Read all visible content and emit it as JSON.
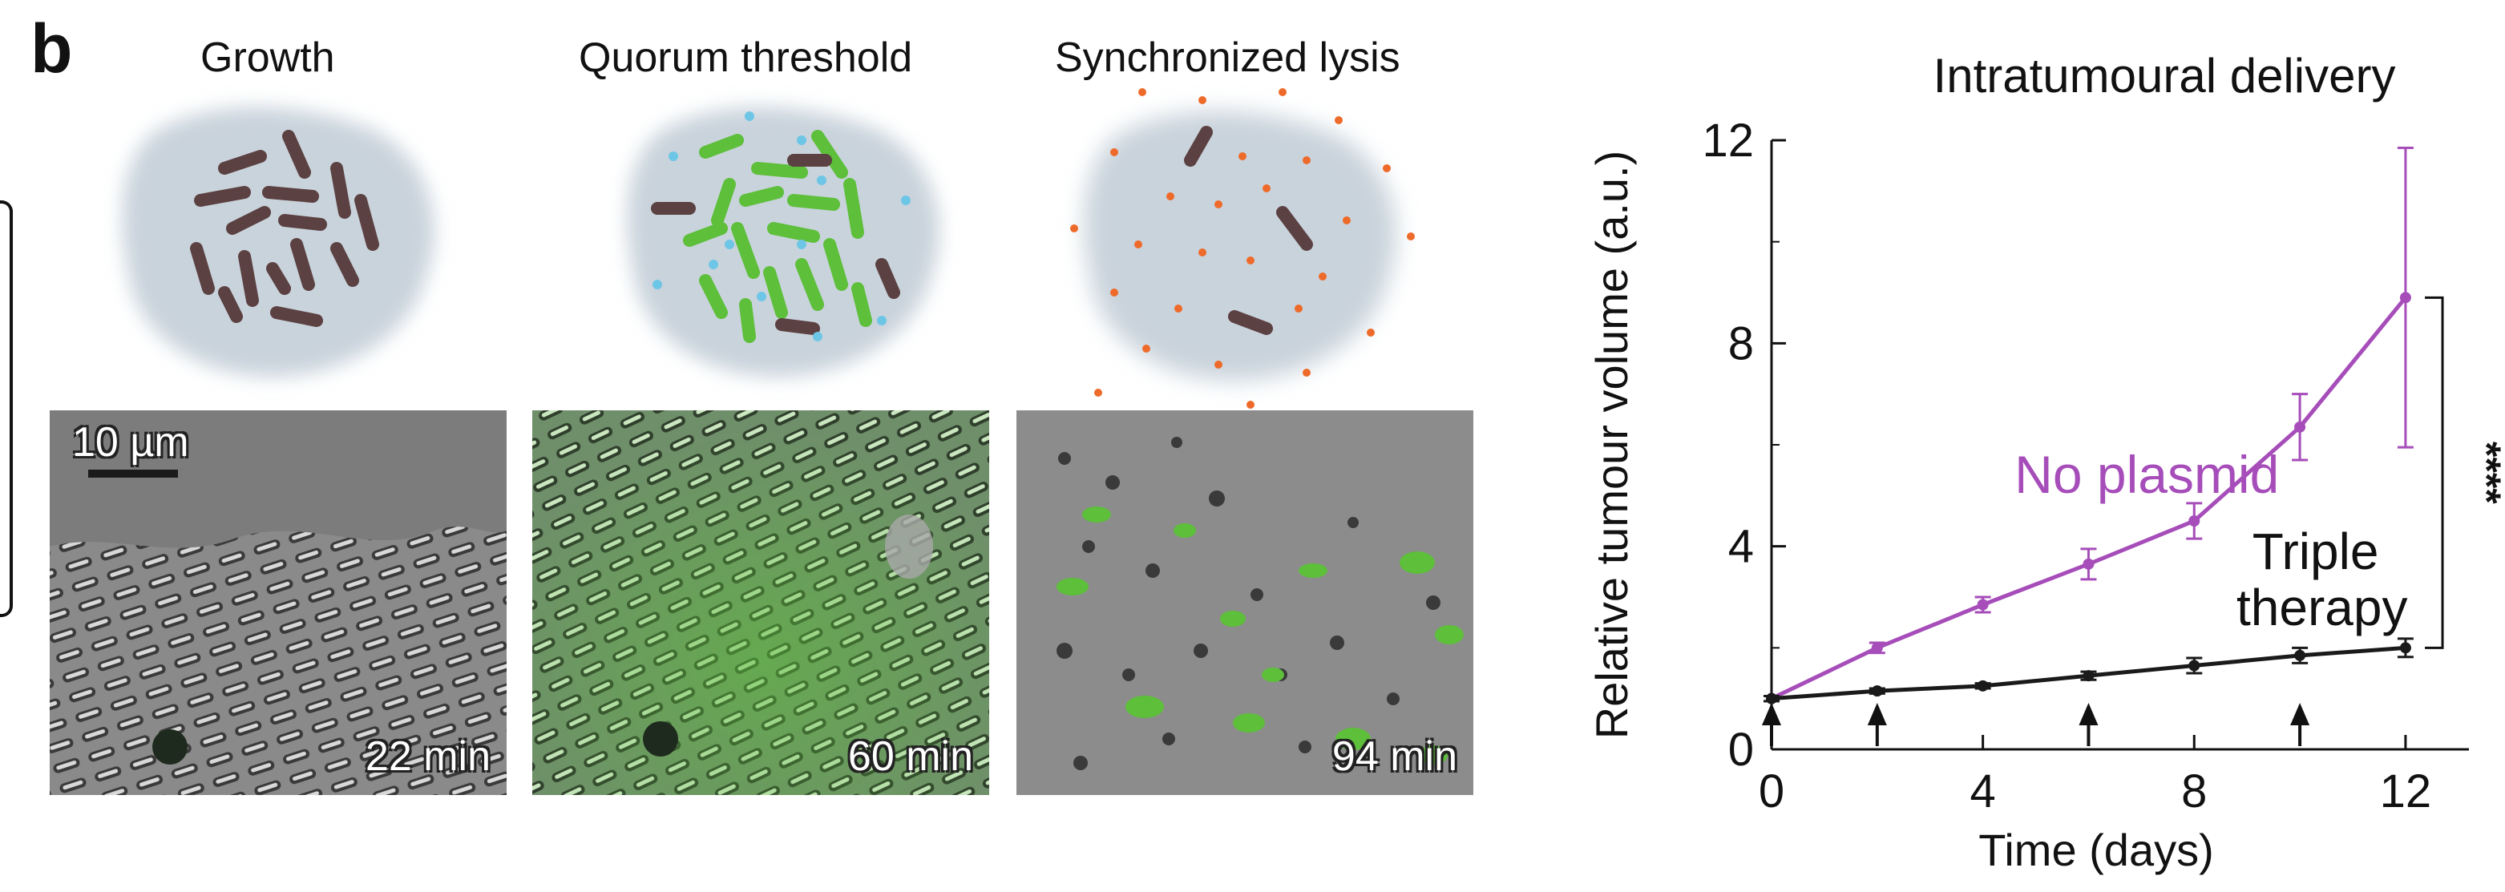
{
  "panel_letter": "b",
  "stages": [
    {
      "title": "Growth",
      "time": "22 min"
    },
    {
      "title": "Quorum threshold",
      "time": "60 min"
    },
    {
      "title": "Synchronized lysis",
      "time": "94 min"
    }
  ],
  "scale_bar_label": "10 µm",
  "colors": {
    "no_plasmid": "#a64dba",
    "triple_therapy": "#1a1a1a",
    "bacteria_dark": "#5b4141",
    "bacteria_green": "#5dbf3a",
    "tumour_blob": "#c9d3dc",
    "signal_dots": "#6ec6e6",
    "lysis_dots": "#ee6a2a"
  },
  "chart_data": {
    "type": "line",
    "title": "Intratumoural delivery",
    "xlabel": "Time (days)",
    "ylabel": "Relative tumour volume (a.u.)",
    "xlim": [
      0,
      13.2
    ],
    "ylim": [
      0,
      12
    ],
    "xticks": [
      0,
      4,
      8,
      12
    ],
    "yticks": [
      0,
      4,
      8,
      12
    ],
    "grid": false,
    "series": [
      {
        "name": "No plasmid",
        "x": [
          0,
          2,
          4,
          6,
          8,
          10,
          12
        ],
        "y": [
          1.0,
          2.0,
          2.85,
          3.65,
          4.5,
          6.35,
          8.9
        ],
        "err": [
          0.05,
          0.1,
          0.15,
          0.3,
          0.35,
          0.65,
          2.95
        ]
      },
      {
        "name": "Triple therapy",
        "x": [
          0,
          2,
          4,
          6,
          8,
          10,
          12
        ],
        "y": [
          1.0,
          1.15,
          1.25,
          1.45,
          1.65,
          1.85,
          2.0
        ],
        "err": [
          0.05,
          0.05,
          0.05,
          0.08,
          0.15,
          0.15,
          0.18
        ]
      }
    ],
    "series_labels": [
      "No plasmid",
      "Triple",
      "therapy"
    ],
    "dosing_days": [
      0,
      2,
      6,
      10
    ],
    "significance": "****"
  }
}
